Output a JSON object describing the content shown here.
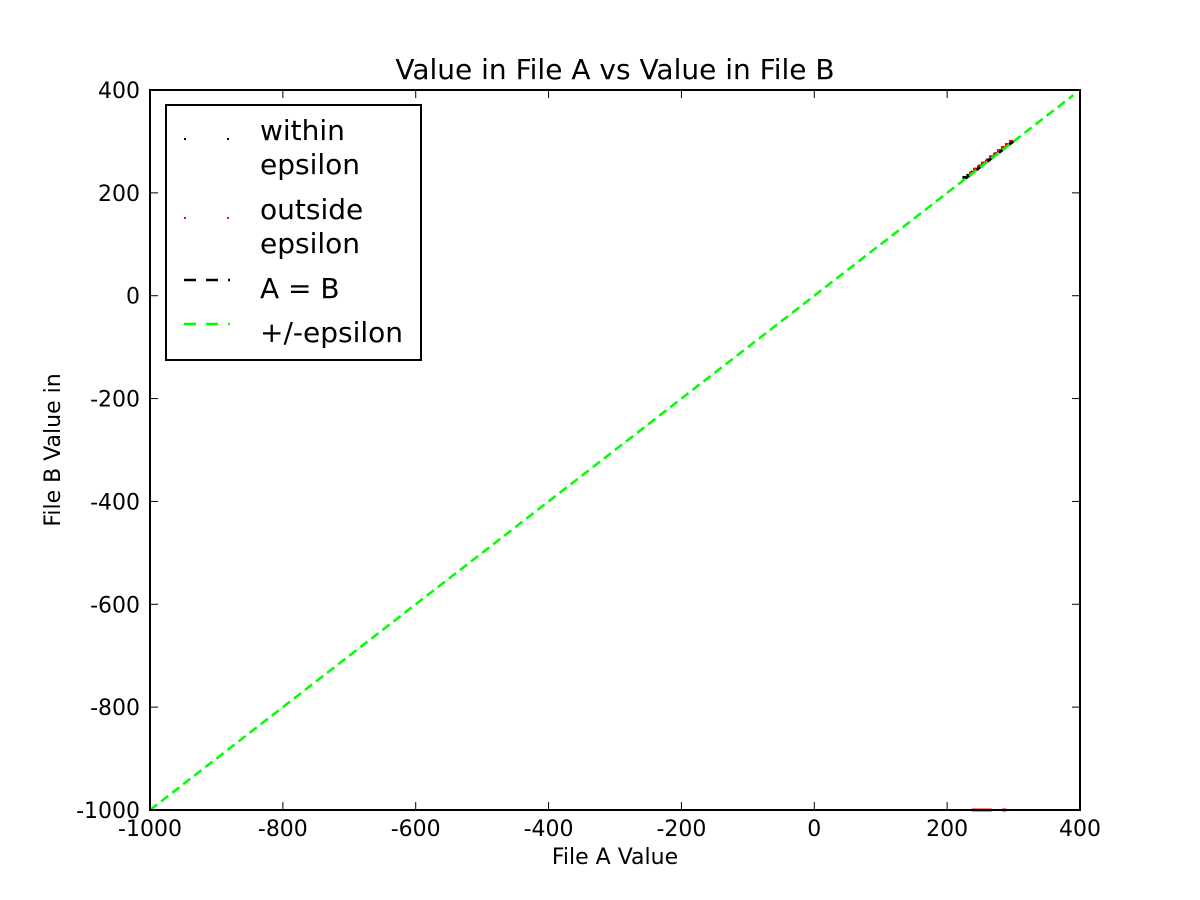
{
  "chart_data": {
    "type": "scatter",
    "title": "Value in File A vs Value in File B",
    "xlabel": "File A Value",
    "ylabel": "File B Value in",
    "xlim": [
      -1000,
      400
    ],
    "ylim": [
      -1000,
      400
    ],
    "x_ticks": [
      "-1000",
      "-800",
      "-600",
      "-400",
      "-200",
      "0",
      "200",
      "400"
    ],
    "y_ticks": [
      "400",
      "200",
      "0",
      "-200",
      "-400",
      "-600",
      "-800",
      "-1000"
    ],
    "grid": false,
    "legend_position": "top-left",
    "legend": [
      {
        "label_lines": [
          "within",
          "epsilon"
        ],
        "style": "dots",
        "color": "#000000"
      },
      {
        "label_lines": [
          "outside",
          "epsilon"
        ],
        "style": "dots",
        "color": "#ff0000"
      },
      {
        "label_lines": [
          "A = B"
        ],
        "style": "dashed",
        "color": "#000000"
      },
      {
        "label_lines": [
          "+/-epsilon"
        ],
        "style": "dashed",
        "color": "#00ff00"
      }
    ],
    "series": [
      {
        "name": "within epsilon",
        "color": "#000000",
        "points": [
          [
            226,
            230
          ],
          [
            232,
            234
          ],
          [
            238,
            240
          ],
          [
            244,
            246
          ],
          [
            250,
            252
          ],
          [
            256,
            258
          ],
          [
            262,
            264
          ],
          [
            268,
            270
          ],
          [
            274,
            276
          ],
          [
            280,
            282
          ],
          [
            286,
            288
          ],
          [
            292,
            294
          ]
        ]
      },
      {
        "name": "outside epsilon",
        "color": "#ff0000",
        "points": [
          [
            236,
            238
          ],
          [
            242,
            246
          ],
          [
            248,
            251
          ],
          [
            254,
            258
          ],
          [
            260,
            262
          ],
          [
            266,
            270
          ],
          [
            272,
            275
          ],
          [
            278,
            282
          ],
          [
            284,
            288
          ],
          [
            290,
            294
          ],
          [
            296,
            300
          ],
          [
            240,
            -1000
          ],
          [
            246,
            -1000
          ],
          [
            252,
            -1000
          ],
          [
            258,
            -1000
          ],
          [
            264,
            -1000
          ],
          [
            286,
            -1000
          ]
        ]
      },
      {
        "name": "A = B",
        "color": "#000000",
        "line": [
          [
            228,
            228
          ],
          [
            300,
            300
          ]
        ]
      },
      {
        "name": "+/-epsilon",
        "color": "#00ff00",
        "line": [
          [
            -1000,
            -1000
          ],
          [
            390,
            390
          ]
        ]
      }
    ]
  }
}
